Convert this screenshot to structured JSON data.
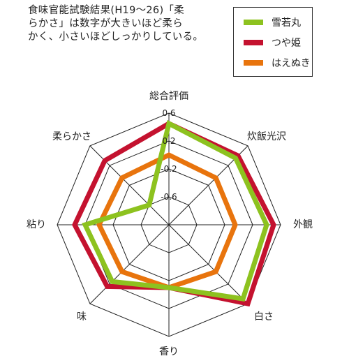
{
  "note": {
    "lines": [
      "食味官能試験結果(H19～26)「柔",
      "らかさ」は数字が大きいほど柔ら",
      "かく、小さいほどしっかりしている。"
    ]
  },
  "chart_data": {
    "type": "radar",
    "axes": [
      "総合評価",
      "炊飯光沢",
      "外観",
      "白さ",
      "香り",
      "味",
      "粘り",
      "柔らかさ"
    ],
    "ticks": [
      0.6,
      0.2,
      -0.2,
      -0.6
    ],
    "rmin": -1.0,
    "rmax": 0.6,
    "series": [
      {
        "name": "雪若丸",
        "color": "#8dc21f",
        "values": [
          0.45,
          0.35,
          0.4,
          0.5,
          -0.1,
          0.15,
          0.2,
          -0.6
        ]
      },
      {
        "name": "つや姫",
        "color": "#c4122f",
        "values": [
          0.45,
          0.4,
          0.5,
          0.6,
          -0.1,
          0.25,
          0.35,
          0.3
        ]
      },
      {
        "name": "はえぬき",
        "color": "#e8740d",
        "values": [
          0.0,
          -0.05,
          -0.05,
          -0.05,
          -0.1,
          -0.05,
          0.0,
          -0.05
        ]
      }
    ]
  }
}
